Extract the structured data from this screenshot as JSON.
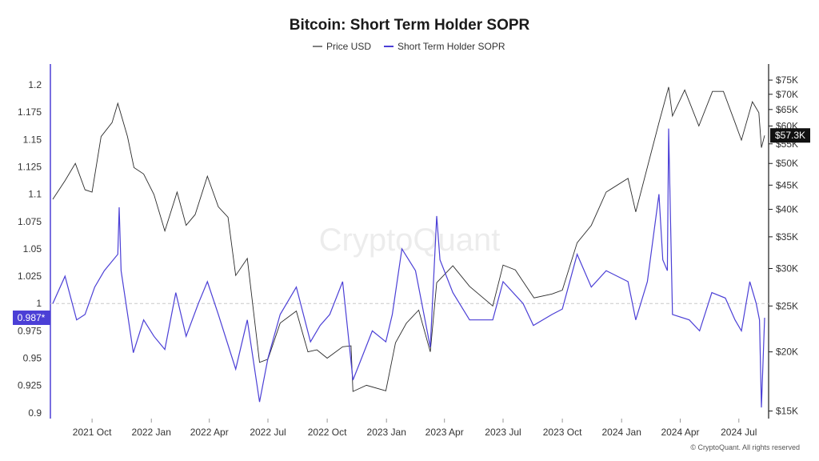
{
  "chart_data": {
    "type": "line",
    "title": "Bitcoin: Short Term Holder SOPR",
    "watermark": "CryptoQuant",
    "credit": "© CryptoQuant. All rights reserved",
    "x_ticks": [
      "2021 Oct",
      "2022 Jan",
      "2022 Apr",
      "2022 Jul",
      "2022 Oct",
      "2023 Jan",
      "2023 Apr",
      "2023 Jul",
      "2023 Oct",
      "2024 Jan",
      "2024 Apr",
      "2024 Jul"
    ],
    "y_left": {
      "ticks": [
        "1.2",
        "1.175",
        "1.15",
        "1.125",
        "1.1",
        "1.075",
        "1.05",
        "1.025",
        "1",
        "0.975",
        "0.95",
        "0.925",
        "0.9"
      ],
      "range": [
        0.897,
        1.208
      ],
      "reference_line": 1.0,
      "current_label": "0.987*",
      "current_value": 0.987
    },
    "y_right": {
      "ticks": [
        "$75K",
        "$70K",
        "$65K",
        "$60K",
        "$55K",
        "$50K",
        "$45K",
        "$40K",
        "$35K",
        "$30K",
        "$25K",
        "$20K",
        "$15K"
      ],
      "tick_values": [
        75000,
        70000,
        65000,
        60000,
        55000,
        50000,
        45000,
        40000,
        35000,
        30000,
        25000,
        20000,
        15000
      ],
      "scale": "log",
      "range": [
        14800,
        78000
      ],
      "current_label": "$57.3K",
      "current_value": 57300
    },
    "series": [
      {
        "name": "Price USD",
        "color": "#2b2b2b",
        "axis": "right",
        "points": [
          [
            "2021-08-01",
            42000
          ],
          [
            "2021-08-20",
            46000
          ],
          [
            "2021-09-05",
            50000
          ],
          [
            "2021-09-20",
            44000
          ],
          [
            "2021-10-01",
            43500
          ],
          [
            "2021-10-15",
            57000
          ],
          [
            "2021-11-01",
            61000
          ],
          [
            "2021-11-10",
            67000
          ],
          [
            "2021-11-25",
            57000
          ],
          [
            "2021-12-05",
            49000
          ],
          [
            "2021-12-20",
            47500
          ],
          [
            "2022-01-05",
            43000
          ],
          [
            "2022-01-22",
            36000
          ],
          [
            "2022-02-10",
            43500
          ],
          [
            "2022-02-24",
            37000
          ],
          [
            "2022-03-10",
            39000
          ],
          [
            "2022-03-29",
            47000
          ],
          [
            "2022-04-15",
            40500
          ],
          [
            "2022-04-30",
            38500
          ],
          [
            "2022-05-12",
            29000
          ],
          [
            "2022-05-30",
            31500
          ],
          [
            "2022-06-18",
            19000
          ],
          [
            "2022-07-01",
            19300
          ],
          [
            "2022-07-20",
            23000
          ],
          [
            "2022-08-14",
            24400
          ],
          [
            "2022-09-01",
            20000
          ],
          [
            "2022-09-15",
            20200
          ],
          [
            "2022-10-01",
            19400
          ],
          [
            "2022-10-25",
            20500
          ],
          [
            "2022-11-07",
            20600
          ],
          [
            "2022-11-10",
            16500
          ],
          [
            "2022-12-01",
            17000
          ],
          [
            "2022-12-31",
            16550
          ],
          [
            "2023-01-15",
            20900
          ],
          [
            "2023-02-01",
            23000
          ],
          [
            "2023-02-20",
            24500
          ],
          [
            "2023-03-10",
            20000
          ],
          [
            "2023-03-20",
            28000
          ],
          [
            "2023-04-14",
            30400
          ],
          [
            "2023-05-10",
            27500
          ],
          [
            "2023-06-15",
            25000
          ],
          [
            "2023-07-01",
            30500
          ],
          [
            "2023-07-20",
            29800
          ],
          [
            "2023-08-18",
            26000
          ],
          [
            "2023-09-15",
            26500
          ],
          [
            "2023-10-01",
            27000
          ],
          [
            "2023-10-24",
            34000
          ],
          [
            "2023-11-15",
            37000
          ],
          [
            "2023-12-08",
            43500
          ],
          [
            "2024-01-11",
            46500
          ],
          [
            "2024-01-23",
            39500
          ],
          [
            "2024-02-14",
            51500
          ],
          [
            "2024-02-28",
            61000
          ],
          [
            "2024-03-14",
            72500
          ],
          [
            "2024-03-20",
            63000
          ],
          [
            "2024-04-08",
            71500
          ],
          [
            "2024-04-30",
            60000
          ],
          [
            "2024-05-21",
            71000
          ],
          [
            "2024-06-07",
            71000
          ],
          [
            "2024-06-25",
            61000
          ],
          [
            "2024-07-05",
            56000
          ],
          [
            "2024-07-22",
            67500
          ],
          [
            "2024-08-01",
            64000
          ],
          [
            "2024-08-05",
            54000
          ],
          [
            "2024-08-10",
            57300
          ]
        ]
      },
      {
        "name": "Short Term Holder SOPR",
        "color": "#4b3fd6",
        "axis": "left",
        "points": [
          [
            "2021-08-01",
            1.0
          ],
          [
            "2021-08-20",
            1.025
          ],
          [
            "2021-09-07",
            0.985
          ],
          [
            "2021-09-20",
            0.99
          ],
          [
            "2021-10-05",
            1.015
          ],
          [
            "2021-10-20",
            1.03
          ],
          [
            "2021-11-10",
            1.045
          ],
          [
            "2021-11-12",
            1.088
          ],
          [
            "2021-11-15",
            1.03
          ],
          [
            "2021-12-04",
            0.955
          ],
          [
            "2021-12-20",
            0.985
          ],
          [
            "2022-01-05",
            0.97
          ],
          [
            "2022-01-22",
            0.958
          ],
          [
            "2022-02-08",
            1.01
          ],
          [
            "2022-02-24",
            0.97
          ],
          [
            "2022-03-15",
            1.0
          ],
          [
            "2022-03-29",
            1.02
          ],
          [
            "2022-04-15",
            0.99
          ],
          [
            "2022-05-12",
            0.94
          ],
          [
            "2022-05-30",
            0.985
          ],
          [
            "2022-06-18",
            0.91
          ],
          [
            "2022-07-01",
            0.95
          ],
          [
            "2022-07-20",
            0.99
          ],
          [
            "2022-08-14",
            1.015
          ],
          [
            "2022-09-05",
            0.965
          ],
          [
            "2022-09-20",
            0.98
          ],
          [
            "2022-10-05",
            0.99
          ],
          [
            "2022-10-25",
            1.02
          ],
          [
            "2022-11-10",
            0.93
          ],
          [
            "2022-11-20",
            0.945
          ],
          [
            "2022-12-10",
            0.975
          ],
          [
            "2022-12-31",
            0.965
          ],
          [
            "2023-01-10",
            0.99
          ],
          [
            "2023-01-25",
            1.05
          ],
          [
            "2023-02-15",
            1.03
          ],
          [
            "2023-03-10",
            0.96
          ],
          [
            "2023-03-20",
            1.08
          ],
          [
            "2023-03-25",
            1.04
          ],
          [
            "2023-04-14",
            1.01
          ],
          [
            "2023-05-10",
            0.985
          ],
          [
            "2023-06-15",
            0.985
          ],
          [
            "2023-07-01",
            1.02
          ],
          [
            "2023-08-01",
            1.0
          ],
          [
            "2023-08-17",
            0.98
          ],
          [
            "2023-09-15",
            0.99
          ],
          [
            "2023-10-01",
            0.995
          ],
          [
            "2023-10-24",
            1.045
          ],
          [
            "2023-11-15",
            1.015
          ],
          [
            "2023-12-08",
            1.03
          ],
          [
            "2024-01-11",
            1.02
          ],
          [
            "2024-01-23",
            0.985
          ],
          [
            "2024-02-10",
            1.02
          ],
          [
            "2024-02-28",
            1.1
          ],
          [
            "2024-03-05",
            1.04
          ],
          [
            "2024-03-12",
            1.03
          ],
          [
            "2024-03-14",
            1.16
          ],
          [
            "2024-03-20",
            0.99
          ],
          [
            "2024-04-15",
            0.985
          ],
          [
            "2024-05-01",
            0.975
          ],
          [
            "2024-05-20",
            1.01
          ],
          [
            "2024-06-10",
            1.005
          ],
          [
            "2024-06-25",
            0.985
          ],
          [
            "2024-07-05",
            0.975
          ],
          [
            "2024-07-18",
            1.02
          ],
          [
            "2024-07-28",
            1.0
          ],
          [
            "2024-08-02",
            0.985
          ],
          [
            "2024-08-05",
            0.905
          ],
          [
            "2024-08-10",
            0.987
          ]
        ]
      }
    ]
  }
}
